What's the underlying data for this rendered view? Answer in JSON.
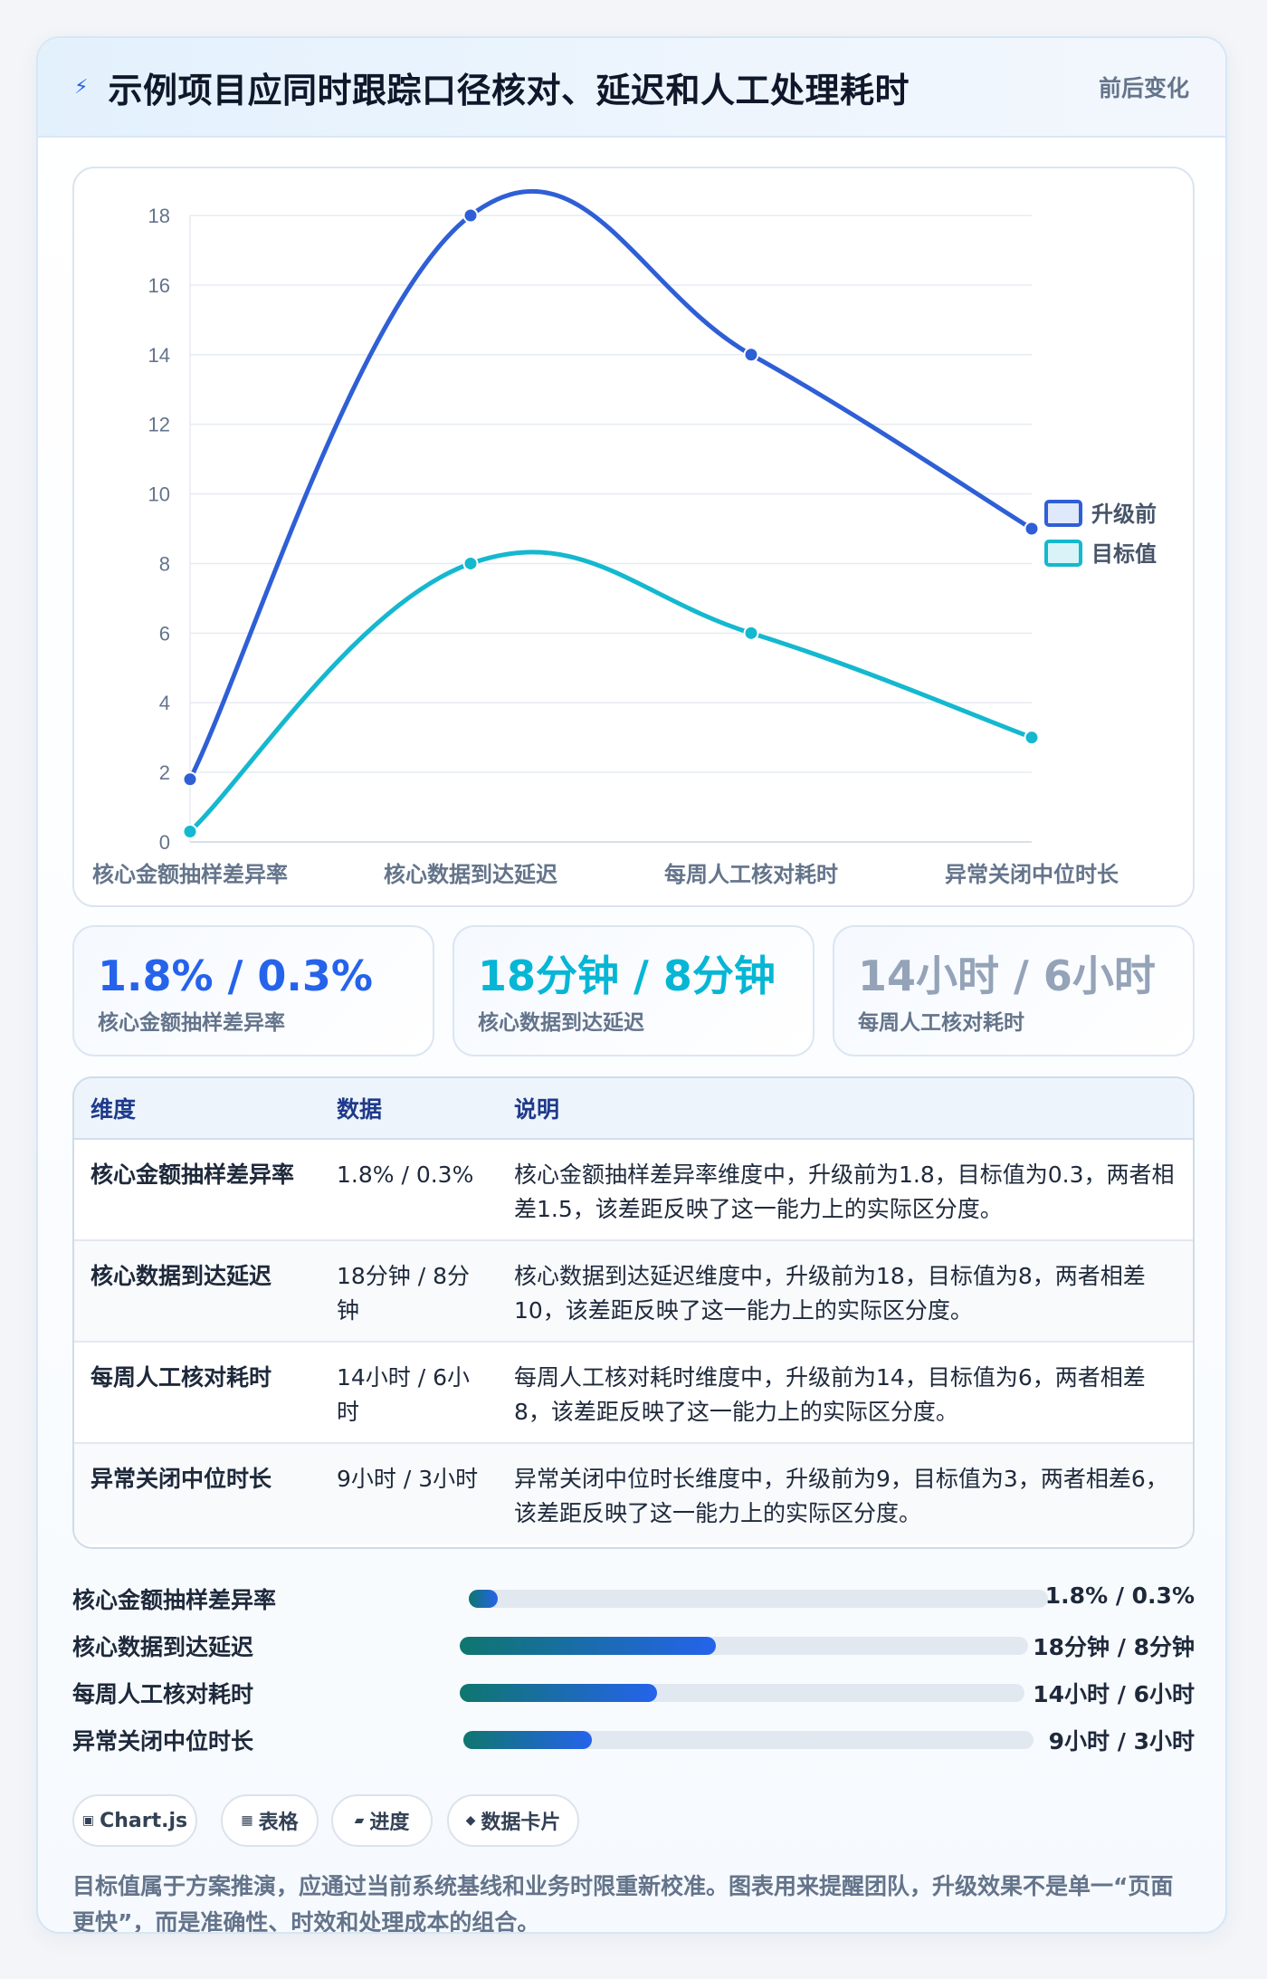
{
  "header": {
    "icon": "lightning-icon",
    "title": "示例项目应同时跟踪口径核对、延迟和人工处理耗时",
    "subtitle": "前后变化"
  },
  "colors": {
    "before": "#2f5fd6",
    "target": "#14b8cf",
    "stat1": "#2563eb",
    "stat2": "#06b6d4",
    "stat3": "#94a3b8"
  },
  "chart_data": {
    "type": "line",
    "categories": [
      "核心金额抽样差异率",
      "核心数据到达延迟",
      "每周人工核对耗时",
      "异常关闭中位时长"
    ],
    "series": [
      {
        "name": "升级前",
        "values": [
          1.8,
          18,
          14,
          9
        ]
      },
      {
        "name": "目标值",
        "values": [
          0.3,
          8,
          6,
          3
        ]
      }
    ],
    "ylim": [
      0,
      18
    ],
    "yticks": [
      "0",
      "2",
      "4",
      "6",
      "8",
      "10",
      "12",
      "14",
      "16",
      "18"
    ],
    "grid": true,
    "legend": "right"
  },
  "stats": [
    {
      "value": "1.8% / 0.3%",
      "label": "核心金额抽样差异率"
    },
    {
      "value": "18分钟 / 8分钟",
      "label": "核心数据到达延迟"
    },
    {
      "value": "14小时 / 6小时",
      "label": "每周人工核对耗时"
    }
  ],
  "table": {
    "headers": [
      "维度",
      "数据",
      "说明"
    ],
    "rows": [
      {
        "dim": "核心金额抽样差异率",
        "data": "1.8% / 0.3%",
        "desc": "核心金额抽样差异率维度中，升级前为1.8，目标值为0.3，两者相差1.5，该差距反映了这一能力上的实际区分度。"
      },
      {
        "dim": "核心数据到达延迟",
        "data": "18分钟 / 8分钟",
        "desc": "核心数据到达延迟维度中，升级前为18，目标值为8，两者相差10，该差距反映了这一能力上的实际区分度。"
      },
      {
        "dim": "每周人工核对耗时",
        "data": "14小时 / 6小时",
        "desc": "每周人工核对耗时维度中，升级前为14，目标值为6，两者相差8，该差距反映了这一能力上的实际区分度。"
      },
      {
        "dim": "异常关闭中位时长",
        "data": "9小时 / 3小时",
        "desc": "异常关闭中位时长维度中，升级前为9，目标值为3，两者相差6，该差距反映了这一能力上的实际区分度。"
      }
    ]
  },
  "progress": [
    {
      "label": "核心金额抽样差异率",
      "value": "1.8% / 0.3%",
      "fraction": 0.05
    },
    {
      "label": "核心数据到达延迟",
      "value": "18分钟 / 8分钟",
      "fraction": 0.45
    },
    {
      "label": "每周人工核对耗时",
      "value": "14小时 / 6小时",
      "fraction": 0.35
    },
    {
      "label": "异常关闭中位时长",
      "value": "9小时 / 3小时",
      "fraction": 0.225
    }
  ],
  "chips": [
    {
      "icon": "chart-icon",
      "glyph": "▣",
      "label": "Chart.js"
    },
    {
      "icon": "table-icon",
      "glyph": "▦",
      "label": "表格"
    },
    {
      "icon": "progress-icon",
      "glyph": "▰",
      "label": "进度"
    },
    {
      "icon": "card-icon",
      "glyph": "◆",
      "label": "数据卡片"
    }
  ],
  "note": "目标值属于方案推演，应通过当前系统基线和业务时限重新校准。图表用来提醒团队，升级效果不是单一“页面更快”，而是准确性、时效和处理成本的组合。"
}
